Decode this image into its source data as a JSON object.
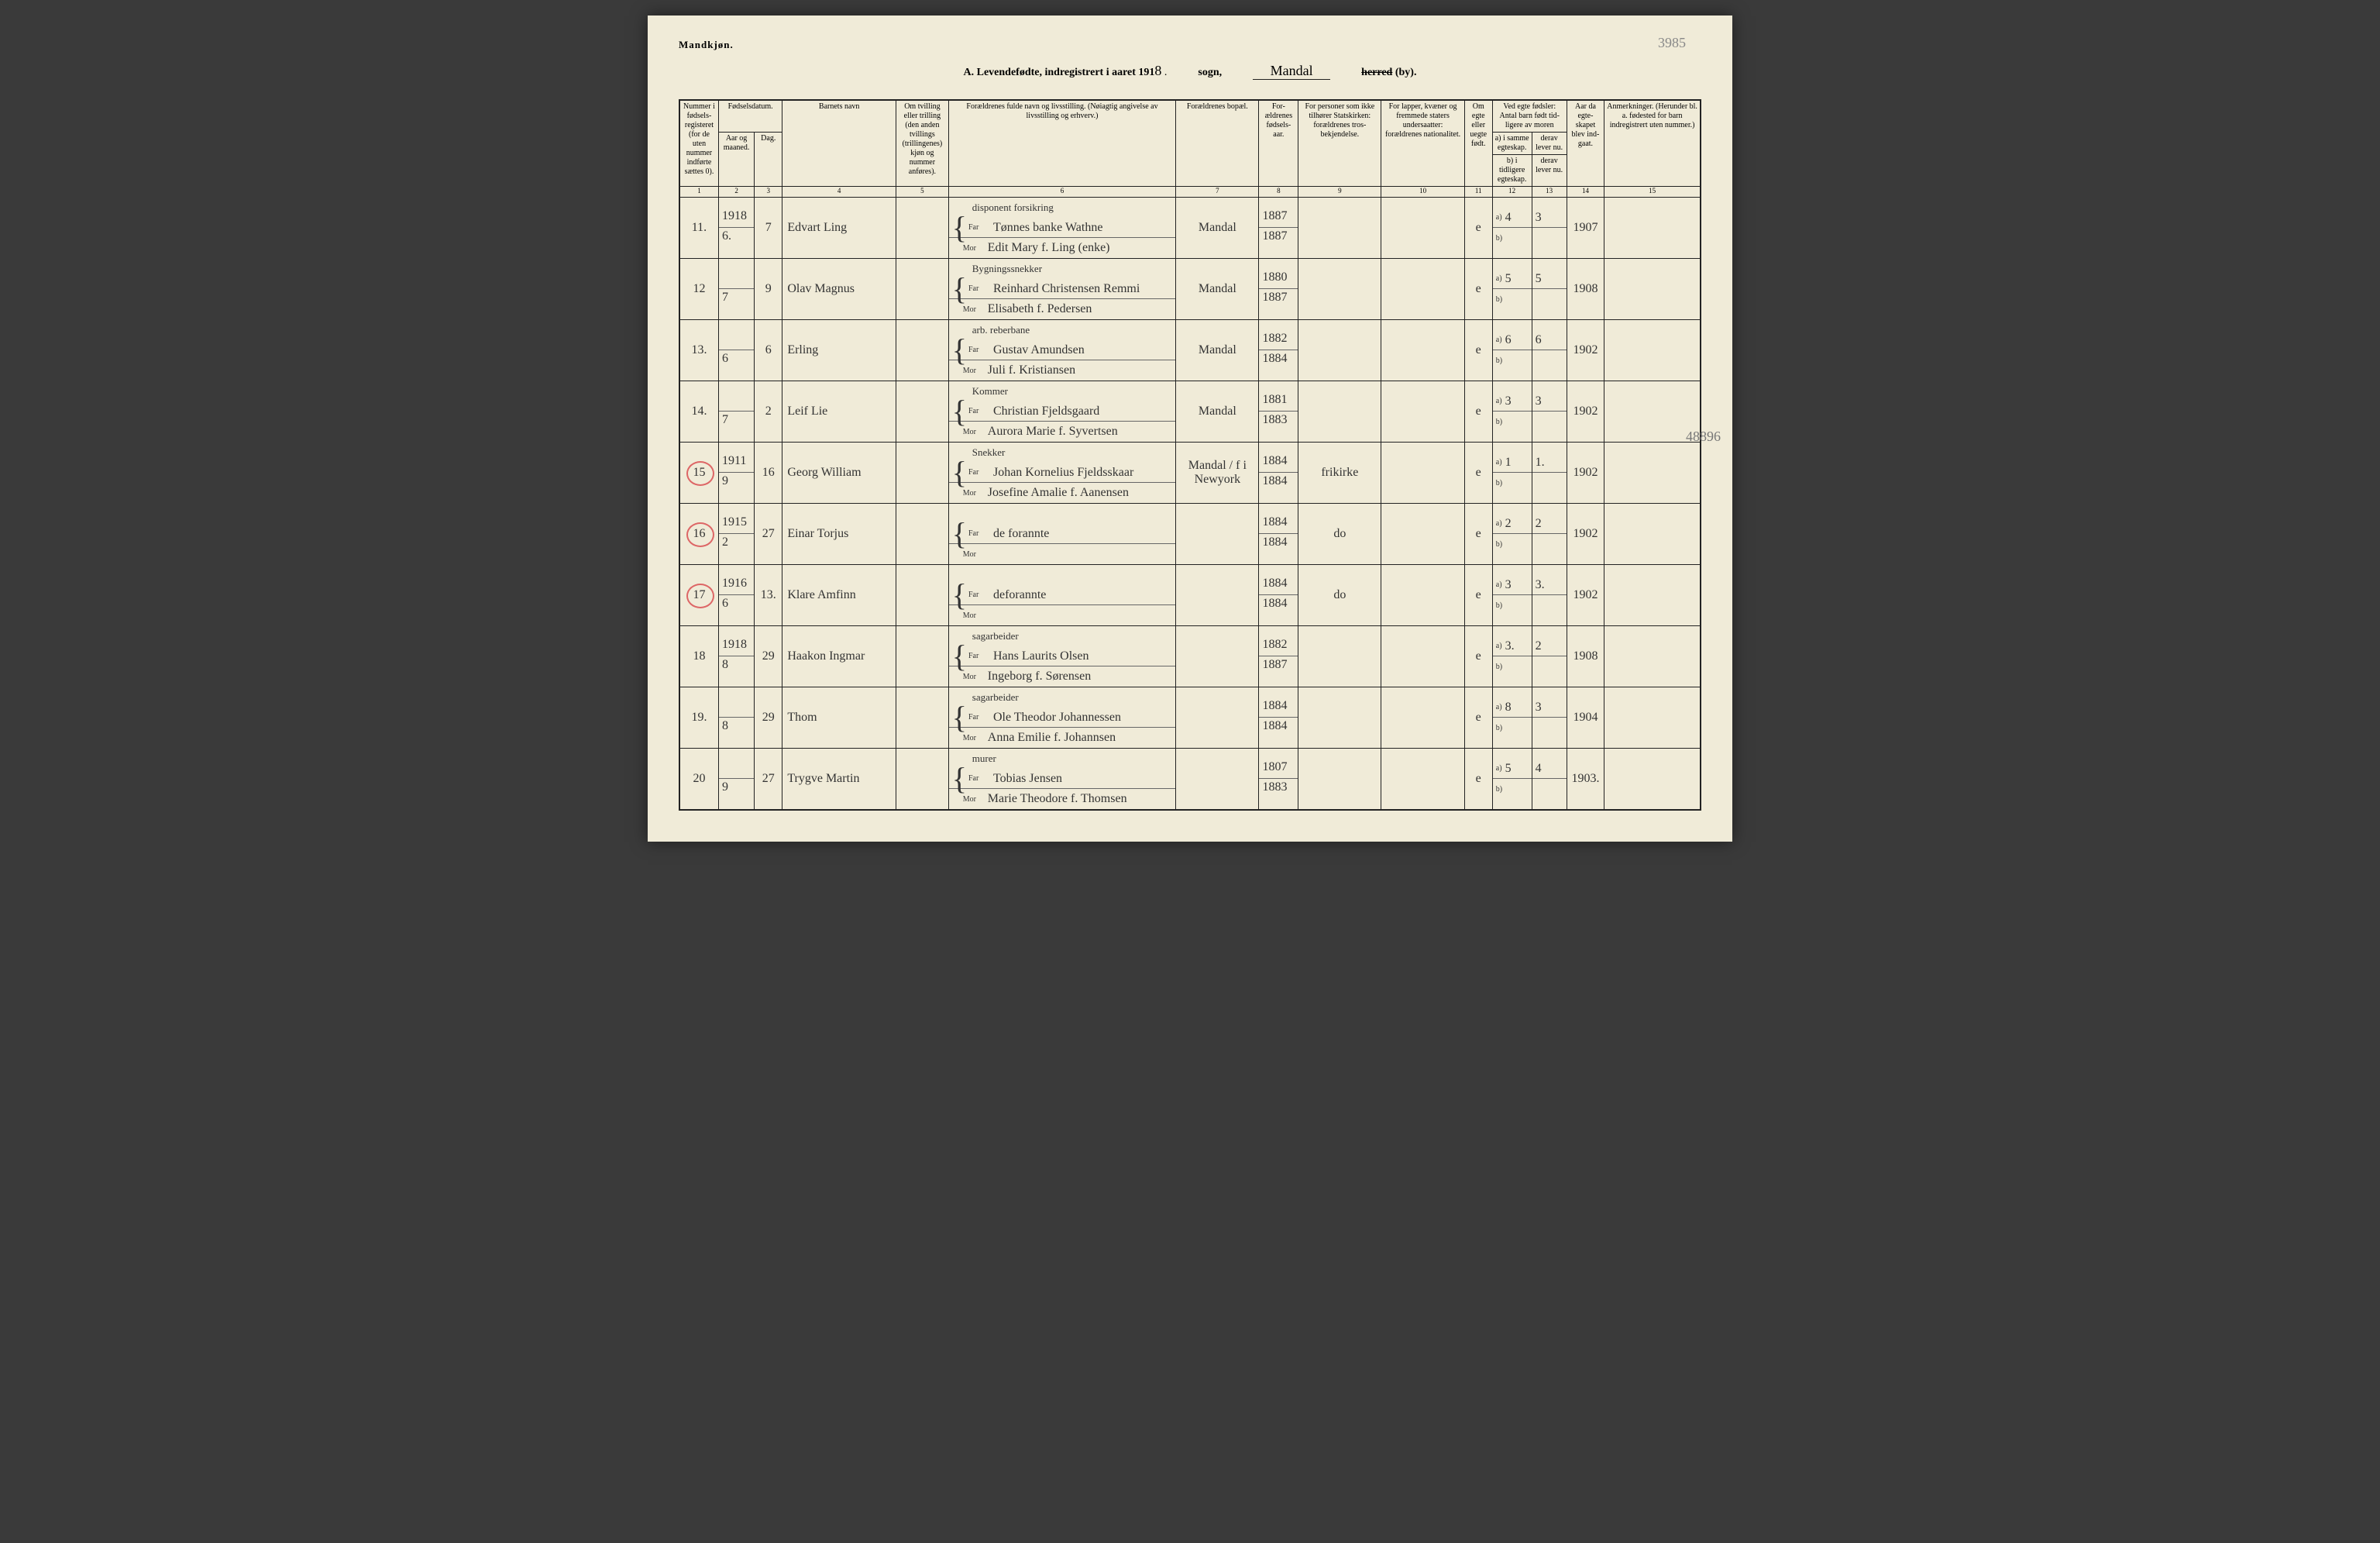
{
  "corner": "Mandkjøn.",
  "page_num": "3985",
  "side_num": "48896",
  "title": {
    "prefix": "A. Levendefødte, indregistrert i aaret 191",
    "year_suffix": "8",
    "sogn_label": "sogn,",
    "sogn_value": "Mandal",
    "herred_struck": "herred",
    "herred_suffix": "(by)."
  },
  "headers": {
    "c1": "Nummer i fødsels-registeret (for de uten nummer indførte sættes 0).",
    "c2_group": "Fødselsdatum.",
    "c2": "Aar og maaned.",
    "c3": "Dag.",
    "c4": "Barnets navn",
    "c5": "Om tvilling eller trilling (den anden tvillings (trillingenes) kjøn og nummer anføres).",
    "c6": "Forældrenes fulde navn og livsstilling. (Nøiagtig angivelse av livsstilling og erhverv.)",
    "c7": "Forældrenes bopæl.",
    "c8": "For-ældrenes fødsels-aar.",
    "c9": "For personer som ikke tilhører Statskirken: forældrenes tros-bekjendelse.",
    "c10": "For lapper, kvæner og fremmede staters undersaatter: forældrenes nationalitet.",
    "c11": "Om egte eller uegte født.",
    "c12_group": "Ved egte fødsler: Antal barn født tid-ligere av moren",
    "c12a": "a) i samme egteskap.",
    "c12b": "b) i tidligere egteskap.",
    "c13a": "derav lever nu.",
    "c13b": "derav lever nu.",
    "c14": "Aar da egte-skapet blev ind-gaat.",
    "c15": "Anmerkninger. (Herunder bl. a. fødested for barn indregistrert uten nummer.)",
    "far": "Far",
    "mor": "Mor",
    "a_label": "a)",
    "b_label": "b)"
  },
  "colnums": [
    "1",
    "2",
    "3",
    "4",
    "5",
    "6",
    "7",
    "8",
    "9",
    "10",
    "11",
    "12",
    "13",
    "14",
    "15"
  ],
  "rows": [
    {
      "num": "11.",
      "year": "1918",
      "month": "6.",
      "day": "7",
      "name": "Edvart Ling",
      "far_occ": "disponent forsikring",
      "far": "Tønnes banke Wathne",
      "mor": "Edit Mary f. Ling (enke)",
      "bopael": "Mandal",
      "far_aar": "1887",
      "mor_aar": "1887",
      "c9": "",
      "c10": "",
      "egte": "e",
      "a": "4",
      "a13": "3",
      "c14": "1907"
    },
    {
      "num": "12",
      "year": "",
      "month": "7",
      "day": "9",
      "name": "Olav Magnus",
      "far_occ": "Bygningssnekker",
      "far": "Reinhard Christensen Remmi",
      "mor": "Elisabeth f. Pedersen",
      "bopael": "Mandal",
      "far_aar": "1880",
      "mor_aar": "1887",
      "c9": "",
      "c10": "",
      "egte": "e",
      "a": "5",
      "a13": "5",
      "c14": "1908"
    },
    {
      "num": "13.",
      "year": "",
      "month": "6",
      "day": "6",
      "name": "Erling",
      "far_occ": "arb. reberbane",
      "far": "Gustav Amundsen",
      "mor": "Juli f. Kristiansen",
      "bopael": "Mandal",
      "far_aar": "1882",
      "mor_aar": "1884",
      "c9": "",
      "c10": "",
      "egte": "e",
      "a": "6",
      "a13": "6",
      "c14": "1902"
    },
    {
      "num": "14.",
      "year": "",
      "month": "7",
      "day": "2",
      "name": "Leif Lie",
      "far_occ": "Kommer",
      "far": "Christian Fjeldsgaard",
      "mor": "Aurora Marie f. Syvertsen",
      "bopael": "Mandal",
      "far_aar": "1881",
      "mor_aar": "1883",
      "c9": "",
      "c10": "",
      "egte": "e",
      "a": "3",
      "a13": "3",
      "c14": "1902"
    },
    {
      "num": "15",
      "circled": true,
      "year": "1911",
      "month": "9",
      "day": "16",
      "name": "Georg William",
      "far_occ": "Snekker",
      "far": "Johan Kornelius Fjeldsskaar",
      "mor": "Josefine Amalie f. Aanensen",
      "bopael": "Mandal / f i Newyork",
      "far_aar": "1884",
      "mor_aar": "1884",
      "c9": "frikirke",
      "c10": "",
      "egte": "e",
      "a": "1",
      "a13": "1.",
      "c14": "1902"
    },
    {
      "num": "16",
      "circled": true,
      "year": "1915",
      "month": "2",
      "day": "27",
      "name": "Einar Torjus",
      "far_occ": "",
      "far": "de forannte",
      "mor": "",
      "bopael": "",
      "far_aar": "1884",
      "mor_aar": "1884",
      "c9": "do",
      "c10": "",
      "egte": "e",
      "a": "2",
      "a13": "2",
      "c14": "1902"
    },
    {
      "num": "17",
      "circled": true,
      "year": "1916",
      "month": "6",
      "day": "13.",
      "name": "Klare Amfinn",
      "far_occ": "",
      "far": "deforannte",
      "mor": "",
      "bopael": "",
      "far_aar": "1884",
      "mor_aar": "1884",
      "c9": "do",
      "c10": "",
      "egte": "e",
      "a": "3",
      "a13": "3.",
      "c14": "1902"
    },
    {
      "num": "18",
      "year": "1918",
      "month": "8",
      "day": "29",
      "name": "Haakon Ingmar",
      "far_occ": "sagarbeider",
      "far": "Hans Laurits Olsen",
      "mor": "Ingeborg f. Sørensen",
      "bopael": "",
      "far_aar": "1882",
      "mor_aar": "1887",
      "c9": "",
      "c10": "",
      "egte": "e",
      "a": "3.",
      "a13": "2",
      "c14": "1908"
    },
    {
      "num": "19.",
      "year": "",
      "month": "8",
      "day": "29",
      "name": "Thom",
      "far_occ": "sagarbeider",
      "far": "Ole Theodor Johannessen",
      "mor": "Anna Emilie f. Johannsen",
      "bopael": "",
      "far_aar": "1884",
      "mor_aar": "1884",
      "c9": "",
      "c10": "",
      "egte": "e",
      "a": "8",
      "a13": "3",
      "c14": "1904"
    },
    {
      "num": "20",
      "year": "",
      "month": "9",
      "day": "27",
      "name": "Trygve Martin",
      "far_occ": "murer",
      "far": "Tobias Jensen",
      "mor": "Marie Theodore f. Thomsen",
      "bopael": "",
      "far_aar": "1807",
      "mor_aar": "1883",
      "c9": "",
      "c10": "",
      "egte": "e",
      "a": "5",
      "a13": "4",
      "c14": "1903."
    }
  ]
}
